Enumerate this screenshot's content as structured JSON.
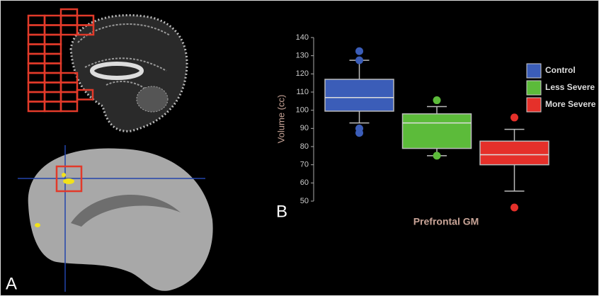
{
  "chart_data": {
    "type": "box",
    "ylabel": "Volume (cc)",
    "xlabel": "Prefrontal GM",
    "annotations": [
      "A",
      "B"
    ],
    "ylim": [
      45,
      140
    ],
    "yticks": [
      50,
      60,
      70,
      80,
      90,
      100,
      110,
      120,
      130,
      140
    ],
    "series": [
      {
        "name": "Control",
        "color": "#3b5db8",
        "whisker_low": 93,
        "q1": 99.5,
        "median": 107,
        "q3": 117,
        "whisker_high": 127.5,
        "outliers": [
          132.5,
          127.5,
          90,
          87.5
        ]
      },
      {
        "name": "Less Severe",
        "color": "#5cbb3a",
        "whisker_low": 75,
        "q1": 79,
        "median": 93,
        "q3": 98,
        "whisker_high": 102,
        "outliers": [
          105.5,
          75
        ]
      },
      {
        "name": "More Severe",
        "color": "#e5302a",
        "whisker_low": 55.5,
        "q1": 70,
        "median": 75.5,
        "q3": 83,
        "whisker_high": 89.5,
        "outliers": [
          96,
          46.5
        ]
      }
    ]
  }
}
